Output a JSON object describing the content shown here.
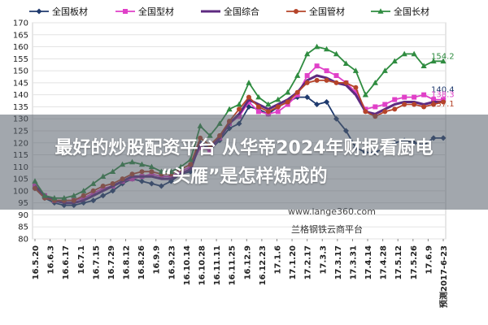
{
  "chart_data": {
    "type": "line",
    "title": "",
    "xlabel": "",
    "ylabel": "",
    "ylim": [
      80,
      170
    ],
    "yticks": [
      80,
      85,
      90,
      95,
      100,
      105,
      110,
      115,
      120,
      125,
      130,
      135,
      140,
      145,
      150,
      155,
      160,
      165,
      170
    ],
    "x_tick_labels": [
      "16.5.20",
      "16.6.3",
      "16.6.17",
      "16.7.1",
      "16.7.15",
      "16.7.29",
      "16.8.12",
      "16.8.26",
      "16.9.9",
      "16.9.23",
      "16.10.14",
      "16.10.28",
      "16.11.11",
      "16.11.25",
      "16.12.9",
      "16.12.23",
      "17.1.6",
      "17.1.20",
      "17.2.17",
      "17.3.3",
      "17.3.17",
      "17.3.31",
      "17.4.14",
      "17.4.28",
      "17.5.12",
      "17.5.26",
      "17.6.9",
      "预测2017-6-23"
    ],
    "grid": true,
    "legend_position": "top",
    "series": [
      {
        "name": "全国板材",
        "color": "#1f3a6e",
        "marker": "diamond",
        "values": [
          101,
          97,
          95,
          94,
          94,
          95,
          96,
          98,
          100,
          103,
          105,
          104,
          103,
          102,
          104,
          107,
          108,
          120,
          117,
          121,
          126,
          128,
          135,
          134,
          132,
          135,
          137,
          139,
          139,
          136,
          137,
          130,
          125,
          118,
          116,
          116,
          118,
          120,
          121,
          120,
          119,
          122,
          122
        ]
      },
      {
        "name": "全国型材",
        "color": "#e040c8",
        "marker": "square",
        "values": [
          102,
          98,
          96,
          96,
          96,
          97,
          99,
          101,
          102,
          104,
          105,
          106,
          107,
          106,
          106,
          108,
          110,
          118,
          117,
          122,
          128,
          131,
          137,
          133,
          132,
          133,
          136,
          140,
          148,
          152,
          150,
          148,
          145,
          141,
          134,
          135,
          136,
          138,
          139,
          139,
          140,
          138,
          138
        ]
      },
      {
        "name": "全国综合",
        "color": "#5e2a80",
        "marker": "none",
        "values": [
          102,
          98,
          96,
          95,
          95,
          96,
          98,
          100,
          102,
          104,
          106,
          106,
          106,
          105,
          105,
          107,
          109,
          120,
          118,
          122,
          128,
          132,
          138,
          136,
          134,
          136,
          138,
          141,
          146,
          148,
          147,
          145,
          144,
          140,
          133,
          132,
          134,
          136,
          137,
          137,
          136,
          137,
          137
        ]
      },
      {
        "name": "全国管材",
        "color": "#b5442a",
        "marker": "circle",
        "values": [
          101,
          97,
          96,
          96,
          96,
          98,
          100,
          102,
          103,
          105,
          107,
          108,
          108,
          107,
          107,
          109,
          111,
          122,
          119,
          123,
          129,
          134,
          139,
          135,
          133,
          135,
          137,
          141,
          145,
          146,
          146,
          145,
          145,
          143,
          133,
          131,
          133,
          134,
          136,
          136,
          135,
          136,
          137
        ]
      },
      {
        "name": "全国长材",
        "color": "#2f8c40",
        "marker": "triangle",
        "values": [
          104,
          98,
          97,
          97,
          98,
          100,
          103,
          106,
          108,
          111,
          112,
          111,
          110,
          108,
          108,
          110,
          113,
          127,
          123,
          128,
          134,
          136,
          145,
          139,
          136,
          138,
          141,
          148,
          157,
          160,
          159,
          157,
          153,
          150,
          140,
          145,
          150,
          154,
          157,
          157,
          152,
          154,
          154
        ]
      }
    ],
    "annotations": [
      "154.2",
      "140.4",
      "138.3",
      "137.1"
    ]
  },
  "overlay": {
    "headline_line1": "最好的炒股配资平台 从华帝2024年财报看厨电",
    "headline_line2": "“头雁”是怎样炼成的"
  },
  "watermark": {
    "url": "www.lange360.com",
    "name": "兰格钢铁云商平台"
  }
}
